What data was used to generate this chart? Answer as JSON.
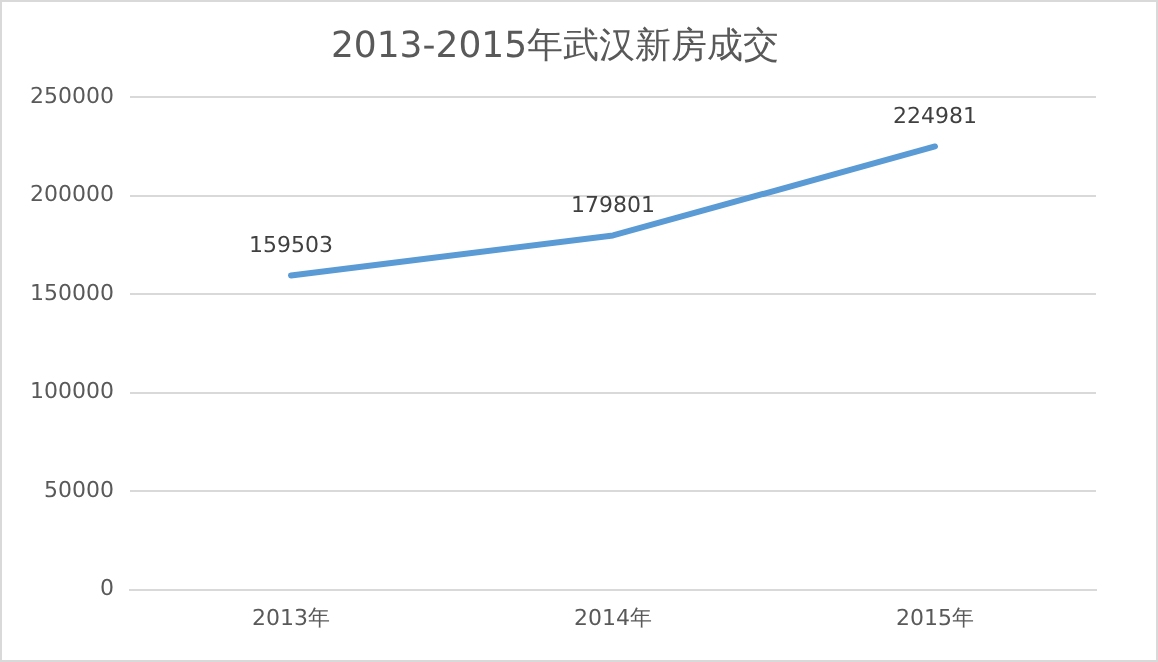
{
  "chart_data": {
    "type": "line",
    "title": "2013-2015年武汉新房成交",
    "categories": [
      "2013年",
      "2014年",
      "2015年"
    ],
    "series": [
      {
        "color": "#5b9bd5",
        "values": [
          159503,
          179801,
          224981
        ]
      }
    ],
    "ylim": [
      0,
      250000
    ],
    "yticks": [
      0,
      50000,
      100000,
      150000,
      200000,
      250000
    ],
    "grid": "y",
    "data_labels": true,
    "marker": "none",
    "line_style": "solid",
    "legend": false
  }
}
